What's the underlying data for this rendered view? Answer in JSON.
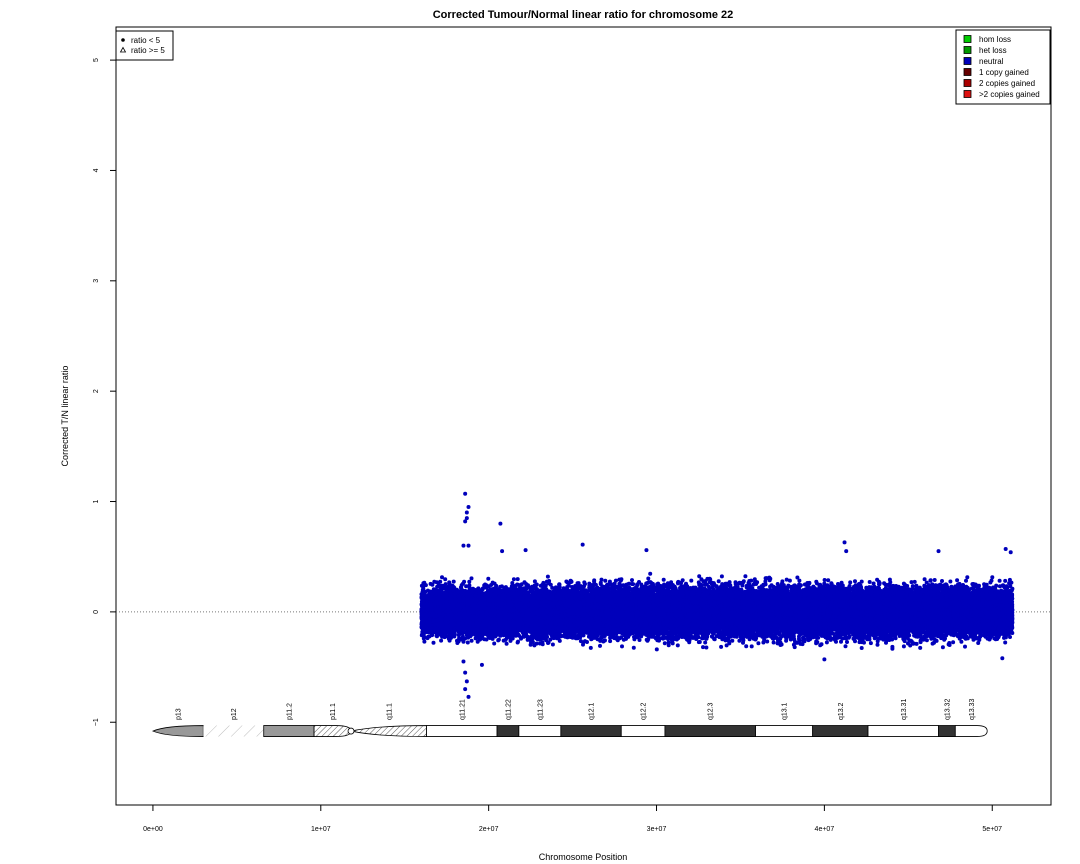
{
  "chart_data": {
    "type": "scatter",
    "title": "Corrected Tumour/Normal linear ratio for chromosome  22",
    "xlabel": "Chromosome Position",
    "ylabel": "Corrected T/N linear ratio",
    "xlim": [
      -2200000,
      53500000
    ],
    "ylim": [
      -1.75,
      5.3
    ],
    "x_ticks": [
      0,
      10000000,
      20000000,
      30000000,
      40000000,
      50000000
    ],
    "x_tick_labels": [
      "0e+00",
      "1e+07",
      "2e+07",
      "3e+07",
      "4e+07",
      "5e+07"
    ],
    "y_ticks": [
      -1,
      0,
      1,
      2,
      3,
      4,
      5
    ],
    "y_tick_labels": [
      "−1",
      "0",
      "1",
      "2",
      "3",
      "4",
      "5"
    ],
    "reference_line_y": 0,
    "shape_legend": [
      {
        "label": "ratio < 5",
        "symbol": "filled-circle"
      },
      {
        "label": "ratio >= 5",
        "symbol": "open-triangle"
      }
    ],
    "state_legend": [
      {
        "label": "hom loss",
        "color": "#00cc00"
      },
      {
        "label": "het loss",
        "color": "#009900"
      },
      {
        "label": "neutral",
        "color": "#0000bb"
      },
      {
        "label": "1 copy gained",
        "color": "#660000"
      },
      {
        "label": "2 copies gained",
        "color": "#aa0000"
      },
      {
        "label": ">2 copies gained",
        "color": "#dd1111"
      }
    ],
    "point_color": "#0000bb",
    "point_groups": [
      {
        "x_start": 16000000,
        "x_end": 20600000,
        "y_center": 0.0,
        "y_spread": 0.28
      },
      {
        "x_start": 20600000,
        "x_end": 51200000,
        "y_center": 0.0,
        "y_spread": 0.3
      }
    ],
    "outliers": [
      {
        "x": 18600000,
        "y": 1.07
      },
      {
        "x": 18800000,
        "y": 0.95
      },
      {
        "x": 18700000,
        "y": 0.9
      },
      {
        "x": 18600000,
        "y": 0.82
      },
      {
        "x": 18700000,
        "y": 0.85
      },
      {
        "x": 18500000,
        "y": 0.6
      },
      {
        "x": 18800000,
        "y": 0.6
      },
      {
        "x": 18600000,
        "y": -0.55
      },
      {
        "x": 18700000,
        "y": -0.63
      },
      {
        "x": 18600000,
        "y": -0.7
      },
      {
        "x": 18800000,
        "y": -0.77
      },
      {
        "x": 18500000,
        "y": -0.45
      },
      {
        "x": 19600000,
        "y": -0.48
      },
      {
        "x": 20700000,
        "y": 0.8
      },
      {
        "x": 20800000,
        "y": 0.55
      },
      {
        "x": 22200000,
        "y": 0.56
      },
      {
        "x": 25600000,
        "y": 0.61
      },
      {
        "x": 29400000,
        "y": 0.56
      },
      {
        "x": 41200000,
        "y": 0.63
      },
      {
        "x": 41300000,
        "y": 0.55
      },
      {
        "x": 46800000,
        "y": 0.55
      },
      {
        "x": 50800000,
        "y": 0.57
      },
      {
        "x": 51100000,
        "y": 0.54
      },
      {
        "x": 50600000,
        "y": -0.42
      },
      {
        "x": 40000000,
        "y": -0.43
      }
    ],
    "ideogram": {
      "y": -1.08,
      "bands": [
        {
          "name": "p13",
          "start": 0,
          "end": 3000000,
          "stain": "gvar",
          "shape": "p-end"
        },
        {
          "name": "p12",
          "start": 3000000,
          "end": 6600000,
          "stain": "stalk"
        },
        {
          "name": "p11.2",
          "start": 6600000,
          "end": 9600000,
          "stain": "gvar"
        },
        {
          "name": "p11.1",
          "start": 9600000,
          "end": 11800000,
          "stain": "hatch",
          "shape": "cen-left"
        },
        {
          "name": "q11.1",
          "start": 11800000,
          "end": 16300000,
          "stain": "hatch",
          "shape": "cen-right"
        },
        {
          "name": "q11.21",
          "start": 16300000,
          "end": 20500000,
          "stain": "gneg"
        },
        {
          "name": "q11.22",
          "start": 20500000,
          "end": 21800000,
          "stain": "gpos100"
        },
        {
          "name": "q11.23",
          "start": 21800000,
          "end": 24300000,
          "stain": "gneg"
        },
        {
          "name": "q12.1",
          "start": 24300000,
          "end": 27900000,
          "stain": "gpos100"
        },
        {
          "name": "q12.2",
          "start": 27900000,
          "end": 30500000,
          "stain": "gneg"
        },
        {
          "name": "q12.3",
          "start": 30500000,
          "end": 35900000,
          "stain": "gpos100"
        },
        {
          "name": "q13.1",
          "start": 35900000,
          "end": 39300000,
          "stain": "gneg"
        },
        {
          "name": "q13.2",
          "start": 39300000,
          "end": 42600000,
          "stain": "gpos100"
        },
        {
          "name": "q13.31",
          "start": 42600000,
          "end": 46800000,
          "stain": "gneg"
        },
        {
          "name": "q13.32",
          "start": 46800000,
          "end": 47800000,
          "stain": "gpos100"
        },
        {
          "name": "q13.33",
          "start": 47800000,
          "end": 49700000,
          "stain": "gneg",
          "shape": "q-end"
        }
      ]
    }
  }
}
